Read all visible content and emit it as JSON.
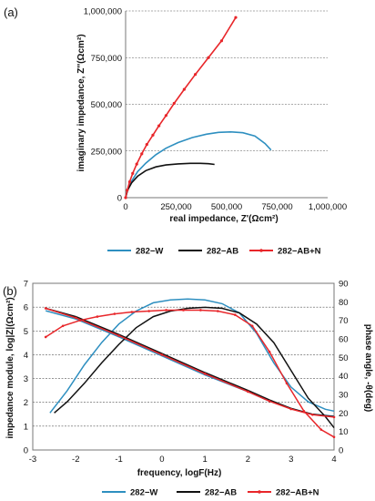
{
  "chart_data": [
    {
      "panel_label": "(a)",
      "type": "scatter",
      "xlabel": "real impedance, Z'(Ωcm²)",
      "ylabel": "imaginary impedance, Z''(Ωcm²)",
      "xlim": [
        0,
        1000000
      ],
      "ylim": [
        0,
        1000000
      ],
      "x_ticks": [
        "0",
        "250,000",
        "500,000",
        "750,000",
        "1,000,000"
      ],
      "y_ticks": [
        "0",
        "250,000",
        "500,000",
        "750,000",
        "1,000,000"
      ],
      "grid": "horizontal",
      "legend_position": "bottom",
      "series": [
        {
          "name": "282−W",
          "color": "#2e8fc0",
          "marker": "none",
          "x": [
            0,
            10000,
            30000,
            60000,
            100000,
            150000,
            200000,
            260000,
            330000,
            400000,
            460000,
            520000,
            580000,
            640000,
            690000,
            720000
          ],
          "y": [
            0,
            45000,
            90000,
            140000,
            185000,
            230000,
            265000,
            295000,
            322000,
            340000,
            350000,
            352000,
            348000,
            330000,
            290000,
            255000
          ]
        },
        {
          "name": "282−AB",
          "color": "#111111",
          "marker": "none",
          "x": [
            0,
            10000,
            30000,
            60000,
            100000,
            150000,
            200000,
            260000,
            320000,
            370000,
            410000,
            440000
          ],
          "y": [
            0,
            40000,
            80000,
            115000,
            145000,
            165000,
            175000,
            181000,
            184000,
            184000,
            182000,
            178000
          ]
        },
        {
          "name": "282−AB+N",
          "color": "#e8262a",
          "marker": "dot",
          "x": [
            0,
            8000,
            20000,
            35000,
            55000,
            80000,
            105000,
            135000,
            165000,
            200000,
            240000,
            290000,
            345000,
            410000,
            475000,
            545000
          ],
          "y": [
            0,
            40000,
            85000,
            130000,
            180000,
            235000,
            285000,
            335000,
            385000,
            440000,
            505000,
            580000,
            660000,
            750000,
            840000,
            965000
          ]
        }
      ]
    },
    {
      "panel_label": "(b)",
      "type": "line",
      "xlabel": "frequency, logF(Hz)",
      "ylabel_left": "impedance module, log|Z|(Ωcm²)",
      "ylabel_right": "phase angle, -θ(deg)",
      "xlim": [
        -3,
        4
      ],
      "ylim_left": [
        0,
        7
      ],
      "ylim_right": [
        0,
        90
      ],
      "x_ticks": [
        "-3",
        "-2",
        "-1",
        "0",
        "1",
        "2",
        "3",
        "4"
      ],
      "y_ticks_left": [
        "0",
        "1",
        "2",
        "3",
        "4",
        "5",
        "6",
        "7"
      ],
      "y_ticks_right": [
        "0",
        "10",
        "20",
        "30",
        "40",
        "50",
        "60",
        "70",
        "80",
        "90"
      ],
      "grid": "horizontal",
      "legend_position": "bottom",
      "series": [
        {
          "name": "282−W",
          "color": "#2e8fc0",
          "marker": "none",
          "modulus_x": [
            -2.7,
            -2,
            -1,
            0,
            1,
            2,
            2.5,
            3,
            3.5,
            4
          ],
          "modulus_y": [
            5.85,
            5.5,
            4.75,
            3.95,
            3.15,
            2.45,
            2.05,
            1.75,
            1.5,
            1.42
          ],
          "phase_x": [
            -2.6,
            -2.2,
            -1.8,
            -1.4,
            -1,
            -0.6,
            -0.2,
            0.2,
            0.6,
            1,
            1.4,
            1.8,
            2.2,
            2.6,
            3,
            3.4,
            3.8,
            4
          ],
          "phase_y": [
            20,
            32,
            46,
            58,
            68,
            75,
            79.5,
            81,
            81.5,
            81,
            79,
            74,
            63,
            47,
            34,
            26,
            22,
            21
          ]
        },
        {
          "name": "282−AB",
          "color": "#111111",
          "marker": "none",
          "modulus_x": [
            -2.7,
            -2,
            -1,
            0,
            1,
            2,
            2.5,
            3,
            3.5,
            4
          ],
          "modulus_y": [
            5.95,
            5.6,
            4.85,
            4.05,
            3.25,
            2.5,
            2.1,
            1.75,
            1.5,
            1.4
          ],
          "phase_x": [
            -2.5,
            -2.2,
            -1.8,
            -1.4,
            -1,
            -0.6,
            -0.2,
            0.2,
            0.6,
            1,
            1.4,
            1.8,
            2.2,
            2.6,
            3,
            3.4,
            3.8,
            4
          ],
          "phase_y": [
            20,
            26,
            36,
            47,
            57,
            66,
            72,
            75,
            76.5,
            77,
            76.5,
            74,
            68,
            58,
            43,
            28,
            18,
            12
          ]
        },
        {
          "name": "282−AB+N",
          "color": "#e8262a",
          "marker": "dot",
          "modulus_x": [
            -2.7,
            -2,
            -1,
            0,
            1,
            2,
            2.5,
            3,
            3.5,
            4
          ],
          "modulus_y": [
            5.95,
            5.55,
            4.8,
            4.0,
            3.2,
            2.45,
            2.05,
            1.72,
            1.48,
            1.38
          ],
          "phase_x": [
            -2.7,
            -2.3,
            -1.9,
            -1.5,
            -1.1,
            -0.7,
            -0.3,
            0.1,
            0.5,
            0.9,
            1.3,
            1.7,
            2.1,
            2.5,
            2.9,
            3.3,
            3.7,
            4
          ],
          "phase_y": [
            61,
            67,
            70,
            72,
            73.5,
            74.5,
            75,
            75.5,
            75.5,
            75.5,
            75,
            73,
            67,
            53,
            36,
            21,
            11,
            7
          ]
        }
      ]
    }
  ]
}
